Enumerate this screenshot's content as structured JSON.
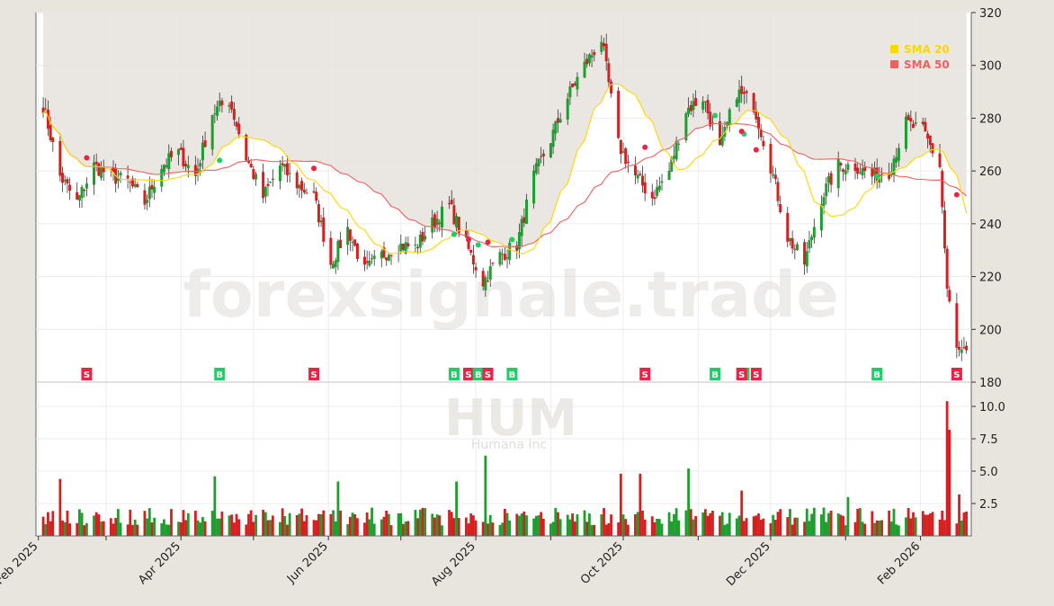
{
  "chart_data": {
    "type": "candlestick",
    "ticker": "HUM",
    "company": "Humana Inc",
    "watermark": "forexsignale.trade",
    "x_ticks": [
      "Feb 2025",
      "Apr 2025",
      "Jun 2025",
      "Aug 2025",
      "Oct 2025",
      "Dec 2025",
      "Feb 2026"
    ],
    "price_axis": {
      "ticks": [
        "180",
        "200",
        "220",
        "240",
        "260",
        "280",
        "300",
        "320"
      ],
      "ylim": [
        180,
        320
      ]
    },
    "volume_axis": {
      "ticks": [
        "2.5",
        "5.0",
        "7.5",
        "10.0"
      ],
      "ylim": [
        0,
        10.5
      ]
    },
    "legend": [
      {
        "name": "SMA 20",
        "color": "#ffd700"
      },
      {
        "name": "SMA 50",
        "color": "#f06060"
      }
    ],
    "colors": {
      "up": "#1e9e2e",
      "down": "#d42020",
      "sma20": "#ffd700",
      "sma50": "#f06060",
      "buy": "#22cc66",
      "sell": "#ee2244"
    },
    "price_keypoints": [
      [
        "2025-02-03",
        285
      ],
      [
        "2025-02-10",
        258
      ],
      [
        "2025-02-17",
        248
      ],
      [
        "2025-02-24",
        262
      ],
      [
        "2025-03-03",
        258
      ],
      [
        "2025-03-10",
        256
      ],
      [
        "2025-03-17",
        248
      ],
      [
        "2025-03-24",
        262
      ],
      [
        "2025-03-31",
        267
      ],
      [
        "2025-04-07",
        258
      ],
      [
        "2025-04-14",
        282
      ],
      [
        "2025-04-21",
        287
      ],
      [
        "2025-04-28",
        265
      ],
      [
        "2025-05-05",
        250
      ],
      [
        "2025-05-12",
        262
      ],
      [
        "2025-05-19",
        255
      ],
      [
        "2025-05-26",
        250
      ],
      [
        "2025-06-02",
        225
      ],
      [
        "2025-06-09",
        238
      ],
      [
        "2025-06-16",
        222
      ],
      [
        "2025-06-23",
        228
      ],
      [
        "2025-06-30",
        232
      ],
      [
        "2025-07-07",
        231
      ],
      [
        "2025-07-14",
        240
      ],
      [
        "2025-07-21",
        247
      ],
      [
        "2025-07-28",
        232
      ],
      [
        "2025-08-04",
        218
      ],
      [
        "2025-08-11",
        228
      ],
      [
        "2025-08-18",
        232
      ],
      [
        "2025-08-25",
        258
      ],
      [
        "2025-09-01",
        272
      ],
      [
        "2025-09-08",
        288
      ],
      [
        "2025-09-15",
        300
      ],
      [
        "2025-09-22",
        310
      ],
      [
        "2025-09-29",
        270
      ],
      [
        "2025-10-06",
        258
      ],
      [
        "2025-10-13",
        250
      ],
      [
        "2025-10-20",
        260
      ],
      [
        "2025-10-27",
        283
      ],
      [
        "2025-11-03",
        288
      ],
      [
        "2025-11-10",
        268
      ],
      [
        "2025-11-17",
        290
      ],
      [
        "2025-11-24",
        285
      ],
      [
        "2025-12-01",
        262
      ],
      [
        "2025-12-08",
        235
      ],
      [
        "2025-12-15",
        225
      ],
      [
        "2025-12-22",
        250
      ],
      [
        "2025-12-29",
        262
      ],
      [
        "2026-01-05",
        262
      ],
      [
        "2026-01-12",
        258
      ],
      [
        "2026-01-19",
        260
      ],
      [
        "2026-01-26",
        278
      ],
      [
        "2026-02-02",
        275
      ],
      [
        "2026-02-09",
        262
      ],
      [
        "2026-02-12",
        215
      ],
      [
        "2026-02-16",
        192
      ],
      [
        "2026-02-20",
        190
      ]
    ],
    "volume_spikes": [
      [
        "2025-02-10",
        4.4
      ],
      [
        "2025-04-15",
        4.6
      ],
      [
        "2025-06-05",
        4.2
      ],
      [
        "2025-07-24",
        4.2
      ],
      [
        "2025-08-05",
        6.2
      ],
      [
        "2025-09-30",
        4.8
      ],
      [
        "2025-10-08",
        4.8
      ],
      [
        "2025-10-28",
        5.2
      ],
      [
        "2025-11-19",
        3.5
      ],
      [
        "2026-01-02",
        3.0
      ],
      [
        "2026-02-12",
        10.4
      ],
      [
        "2026-02-13",
        8.2
      ],
      [
        "2026-02-17",
        3.2
      ]
    ],
    "signals": [
      {
        "date": "2025-02-21",
        "type": "S",
        "price": 265
      },
      {
        "date": "2025-04-17",
        "type": "B",
        "price": 264
      },
      {
        "date": "2025-05-26",
        "type": "S",
        "price": 261
      },
      {
        "date": "2025-07-23",
        "type": "B",
        "price": 236
      },
      {
        "date": "2025-07-29",
        "type": "S",
        "price": 234
      },
      {
        "date": "2025-08-02",
        "type": "B",
        "price": 232
      },
      {
        "date": "2025-08-06",
        "type": "S",
        "price": 233
      },
      {
        "date": "2025-08-16",
        "type": "B",
        "price": 234
      },
      {
        "date": "2025-10-10",
        "type": "S",
        "price": 269
      },
      {
        "date": "2025-11-08",
        "type": "B",
        "price": 281
      },
      {
        "date": "2025-11-20",
        "type": "B",
        "price": 274
      },
      {
        "date": "2025-11-19",
        "type": "S",
        "price": 275
      },
      {
        "date": "2025-11-25",
        "type": "S",
        "price": 268
      },
      {
        "date": "2026-01-14",
        "type": "B",
        "price": 258
      },
      {
        "date": "2026-02-16",
        "type": "S",
        "price": 251
      }
    ],
    "grid": true,
    "legend_position": "top-right"
  }
}
